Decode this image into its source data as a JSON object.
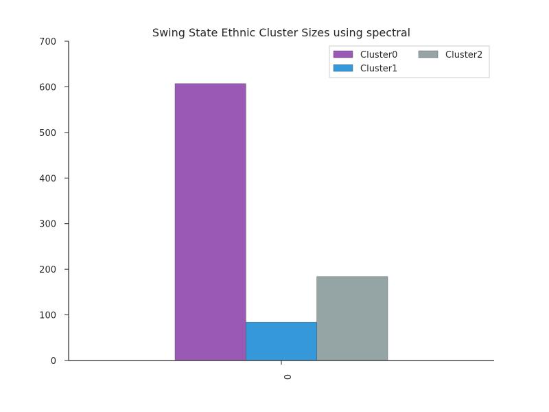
{
  "chart_data": {
    "type": "bar",
    "title": "Swing State Ethnic Cluster Sizes using spectral",
    "categories": [
      "0"
    ],
    "series": [
      {
        "name": "Cluster0",
        "values": [
          607
        ],
        "color": "#9b59b6"
      },
      {
        "name": "Cluster1",
        "values": [
          84
        ],
        "color": "#3498db"
      },
      {
        "name": "Cluster2",
        "values": [
          184
        ],
        "color": "#95a5a6"
      }
    ],
    "ylim": [
      0,
      700
    ],
    "yticks": [
      "0",
      "100",
      "200",
      "300",
      "400",
      "500",
      "600",
      "700"
    ],
    "legend": {
      "position": "top-right",
      "columns": 2
    },
    "grid": false
  }
}
